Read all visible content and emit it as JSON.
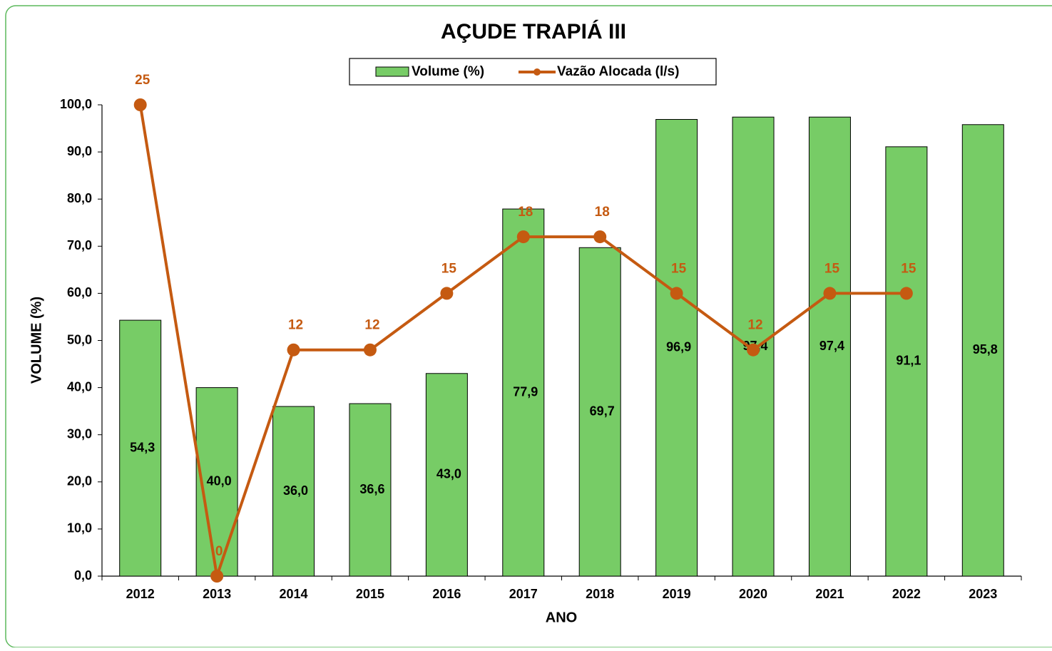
{
  "chart_data": {
    "type": "bar_line",
    "title": "AÇUDE TRAPIÁ III",
    "xlabel": "ANO",
    "ylabel": "VOLUME (%)",
    "categories": [
      "2012",
      "2013",
      "2014",
      "2015",
      "2016",
      "2017",
      "2018",
      "2019",
      "2020",
      "2021",
      "2022",
      "2023"
    ],
    "series": [
      {
        "name": "Volume (%)",
        "type": "bar",
        "color": "#77cc66",
        "values": [
          54.3,
          40.0,
          36.0,
          36.6,
          43.0,
          77.9,
          69.7,
          96.9,
          97.4,
          97.4,
          91.1,
          95.8
        ],
        "value_labels": [
          "54,3",
          "40,0",
          "36,0",
          "36,6",
          "43,0",
          "77,9",
          "69,7",
          "96,9",
          "97,4",
          "97,4",
          "91,1",
          "95,8"
        ]
      },
      {
        "name": "Vazão Alocada (l/s)",
        "type": "line",
        "color": "#c55a11",
        "axis": "y2",
        "values": [
          25,
          0,
          12,
          12,
          15,
          18,
          18,
          15,
          12,
          15,
          15,
          null
        ]
      }
    ],
    "ylim": [
      0,
      100
    ],
    "yticks": [
      {
        "value": 0,
        "label": "0,0"
      },
      {
        "value": 10,
        "label": "10,0"
      },
      {
        "value": 20,
        "label": "20,0"
      },
      {
        "value": 30,
        "label": "30,0"
      },
      {
        "value": 40,
        "label": "40,0"
      },
      {
        "value": 50,
        "label": "50,0"
      },
      {
        "value": 60,
        "label": "60,0"
      },
      {
        "value": 70,
        "label": "70,0"
      },
      {
        "value": 80,
        "label": "80,0"
      },
      {
        "value": 90,
        "label": "90,0"
      },
      {
        "value": 100,
        "label": "100,0"
      }
    ],
    "y2lim": [
      0,
      25
    ],
    "legend": "top"
  }
}
